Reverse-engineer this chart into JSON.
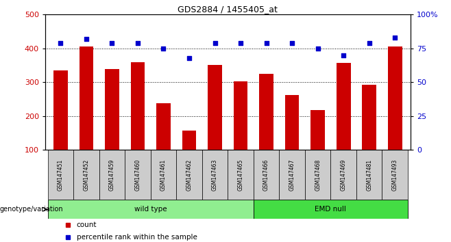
{
  "title": "GDS2884 / 1455405_at",
  "samples": [
    "GSM147451",
    "GSM147452",
    "GSM147459",
    "GSM147460",
    "GSM147461",
    "GSM147462",
    "GSM147463",
    "GSM147465",
    "GSM147466",
    "GSM147467",
    "GSM147468",
    "GSM147469",
    "GSM147481",
    "GSM147493"
  ],
  "counts": [
    335,
    405,
    340,
    360,
    238,
    158,
    352,
    303,
    325,
    262,
    217,
    358,
    292,
    405
  ],
  "percentile_ranks": [
    79,
    82,
    79,
    79,
    75,
    68,
    79,
    79,
    79,
    79,
    75,
    70,
    79,
    83
  ],
  "groups": [
    {
      "label": "wild type",
      "start": 0,
      "end": 8,
      "color": "#90ee90"
    },
    {
      "label": "EMD null",
      "start": 8,
      "end": 14,
      "color": "#44dd44"
    }
  ],
  "bar_color": "#cc0000",
  "dot_color": "#0000cc",
  "ylim_left": [
    100,
    500
  ],
  "ylim_right": [
    0,
    100
  ],
  "yticks_left": [
    100,
    200,
    300,
    400,
    500
  ],
  "yticks_right": [
    0,
    25,
    50,
    75,
    100
  ],
  "yticklabels_right": [
    "0",
    "25",
    "50",
    "75",
    "100%"
  ],
  "grid_values": [
    200,
    300,
    400
  ],
  "legend_count": "count",
  "legend_percentile": "percentile rank within the sample",
  "background_color": "#ffffff",
  "tick_label_color_left": "#cc0000",
  "tick_label_color_right": "#0000cc",
  "bar_width": 0.55,
  "sample_box_color": "#cccccc",
  "genotype_label": "genotype/variation"
}
